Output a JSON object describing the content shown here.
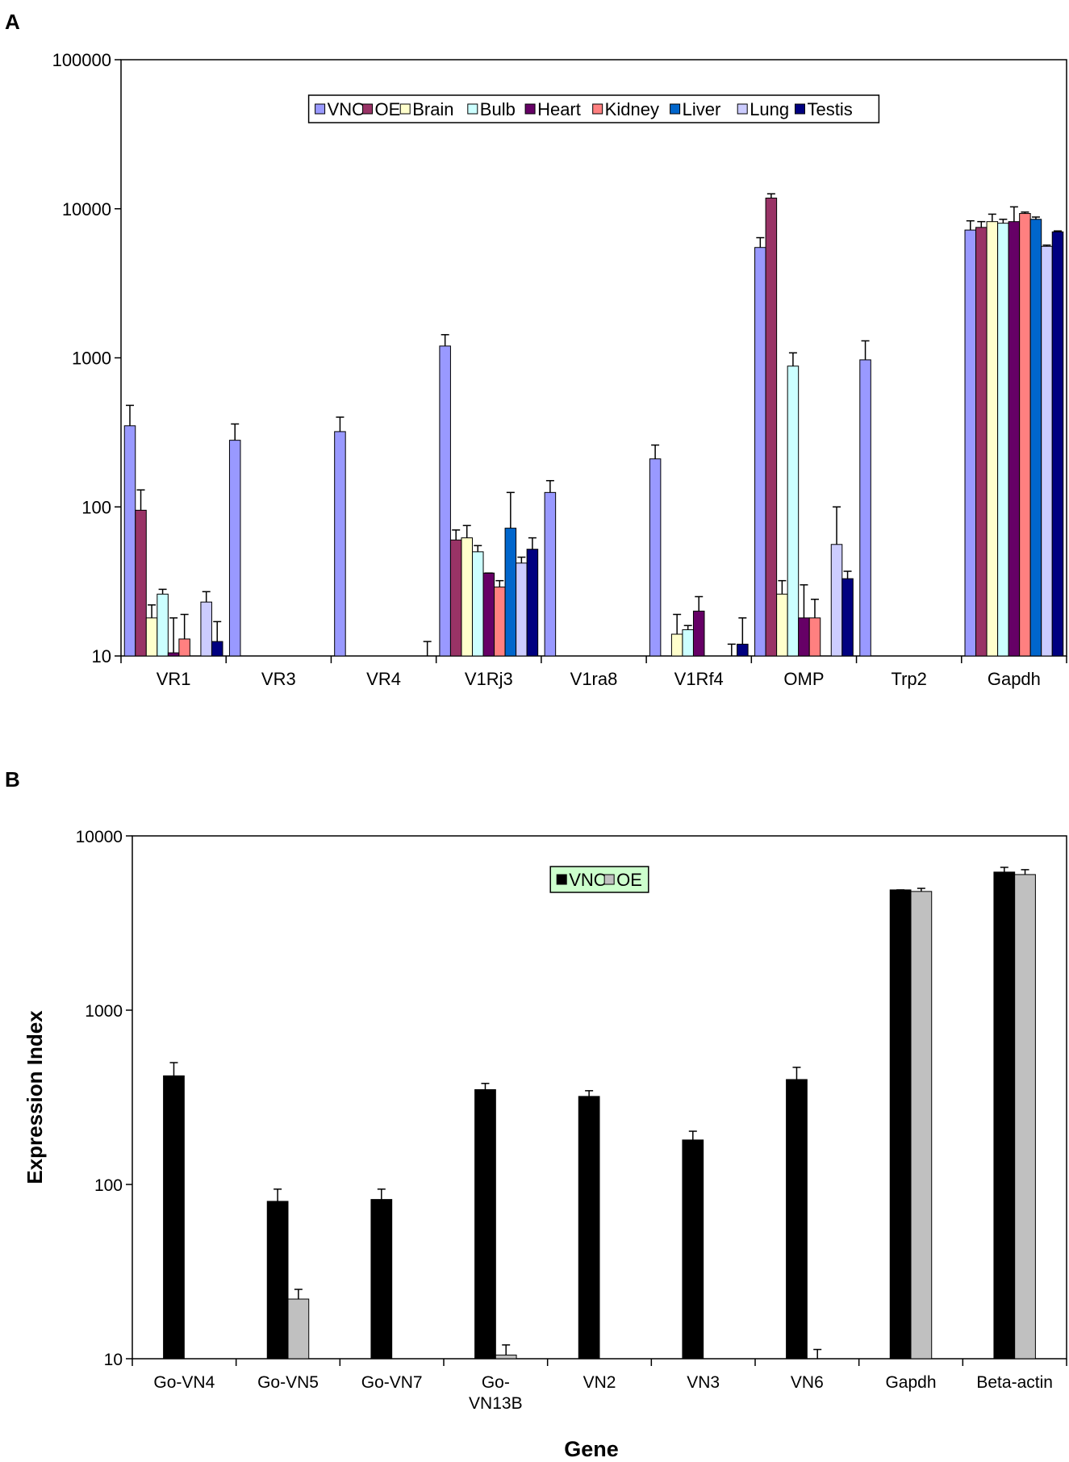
{
  "chart_data": [
    {
      "panel_label": "A",
      "type": "bar",
      "y_scale": "log",
      "ylim": [
        10,
        100000
      ],
      "y_ticks": [
        "10",
        "100",
        "1000",
        "10000",
        "100000"
      ],
      "title": "",
      "xlabel": "",
      "ylabel": "",
      "legend_position": "top-center",
      "categories": [
        "VR1",
        "VR3",
        "VR4",
        "V1Rj3",
        "V1ra8",
        "V1Rf4",
        "OMP",
        "Trp2",
        "Gapdh"
      ],
      "series": [
        {
          "name": "VNO",
          "color": "#9999ff",
          "values": [
            350,
            280,
            320,
            1200,
            125,
            210,
            5500,
            970,
            7200
          ],
          "errors": [
            480,
            360,
            400,
            1430,
            150,
            260,
            6400,
            1300,
            8300
          ]
        },
        {
          "name": "OE",
          "color": "#993366",
          "values": [
            95,
            null,
            null,
            60,
            null,
            null,
            11800,
            null,
            7500
          ],
          "errors": [
            130,
            null,
            null,
            70,
            null,
            null,
            12600,
            null,
            8200
          ]
        },
        {
          "name": "Brain",
          "color": "#ffffcc",
          "values": [
            18,
            null,
            null,
            62,
            null,
            14,
            26,
            null,
            8200
          ],
          "errors": [
            22,
            null,
            null,
            75,
            null,
            19,
            32,
            null,
            9200
          ]
        },
        {
          "name": "Bulb",
          "color": "#ccffff",
          "values": [
            26,
            null,
            null,
            50,
            null,
            15,
            880,
            null,
            8000
          ],
          "errors": [
            28,
            null,
            null,
            55,
            null,
            16,
            1080,
            null,
            8500
          ]
        },
        {
          "name": "Heart",
          "color": "#660066",
          "values": [
            10.5,
            null,
            null,
            36,
            null,
            20,
            18,
            null,
            8200
          ],
          "errors": [
            18,
            null,
            null,
            36,
            null,
            25,
            30,
            null,
            10300
          ]
        },
        {
          "name": "Kidney",
          "color": "#ff8080",
          "values": [
            13,
            null,
            null,
            29,
            null,
            null,
            18,
            null,
            9300
          ],
          "errors": [
            19,
            null,
            null,
            32,
            null,
            null,
            24,
            null,
            9500
          ]
        },
        {
          "name": "Liver",
          "color": "#0066cc",
          "values": [
            null,
            null,
            null,
            72,
            null,
            null,
            null,
            null,
            8500
          ],
          "errors": [
            null,
            null,
            null,
            125,
            null,
            null,
            null,
            null,
            8800
          ]
        },
        {
          "name": "Lung",
          "color": "#ccccff",
          "values": [
            23,
            null,
            null,
            42,
            null,
            null,
            56,
            null,
            5600
          ],
          "errors": [
            27,
            null,
            null,
            46,
            null,
            12,
            100,
            null,
            5700
          ]
        },
        {
          "name": "Testis",
          "color": "#000080",
          "values": [
            12.5,
            null,
            10,
            52,
            null,
            12,
            33,
            null,
            7000
          ],
          "errors": [
            17,
            null,
            12.5,
            62,
            null,
            18,
            37,
            null,
            7100
          ]
        }
      ]
    },
    {
      "panel_label": "B",
      "type": "bar",
      "y_scale": "log",
      "ylim": [
        10,
        10000
      ],
      "y_ticks": [
        "10",
        "100",
        "1000",
        "10000"
      ],
      "title": "",
      "xlabel": "Gene",
      "ylabel": "Expression Index",
      "legend_position": "top-center",
      "legend_background": "#ccffcc",
      "categories": [
        "Go-VN4",
        "Go-VN5",
        "Go-VN7",
        "Go-\nVN13B",
        "VN2",
        "VN3",
        "VN6",
        "Gapdh",
        "Beta-actin"
      ],
      "series": [
        {
          "name": "VNO",
          "color": "#000000",
          "values": [
            420,
            80,
            82,
            350,
            320,
            180,
            400,
            4900,
            6200
          ],
          "errors": [
            500,
            94,
            94,
            380,
            345,
            202,
            470,
            4900,
            6600
          ]
        },
        {
          "name": "OE",
          "color": "#c0c0c0",
          "values": [
            null,
            22,
            null,
            10.5,
            null,
            null,
            10,
            4800,
            6000
          ],
          "errors": [
            null,
            25,
            null,
            12,
            null,
            null,
            11.3,
            5000,
            6400
          ]
        }
      ]
    }
  ]
}
